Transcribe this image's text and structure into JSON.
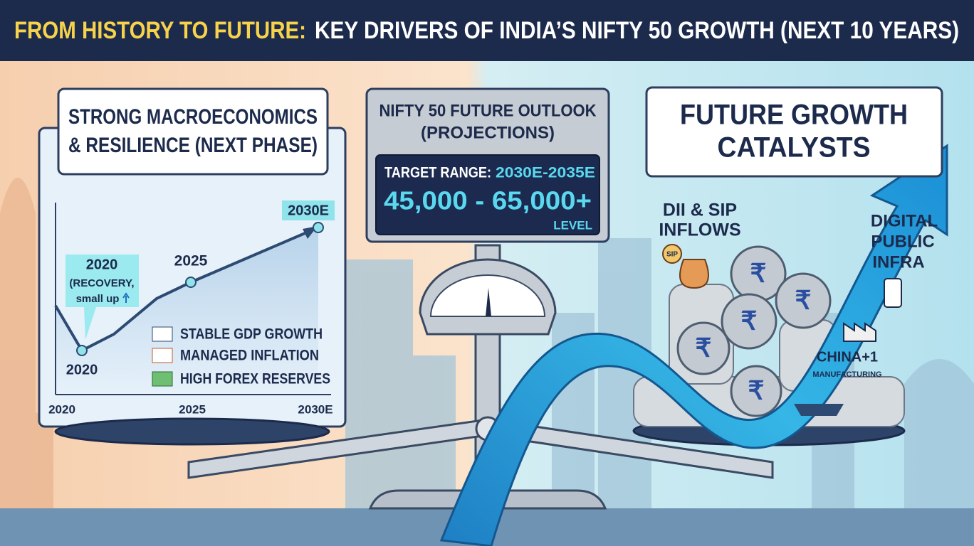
{
  "header": {
    "title_highlight": "FROM HISTORY TO FUTURE:",
    "title": "KEY DRIVERS OF INDIA’S NIFTY 50 GROWTH (NEXT 10 YEARS)"
  },
  "left_panel": {
    "title_lines": [
      "STRONG MACROECONOMICS",
      "& RESILIENCE (NEXT PHASE)"
    ],
    "chart": {
      "end_label": "2030E",
      "mid_label": "2025",
      "low_label": "2020",
      "callout_lines": [
        "2020",
        "(RECOVERY,",
        "small up"
      ],
      "x_labels": [
        "2020",
        "2025",
        "2030E"
      ]
    },
    "drivers": [
      "STABLE GDP GROWTH",
      "MANAGED INFLATION",
      "HIGH FOREX RESERVES"
    ]
  },
  "center_panel": {
    "title_lines": [
      "NIFTY 50 FUTURE OUTLOOK",
      "(PROJECTIONS)"
    ],
    "target_label": "TARGET RANGE:",
    "target_period": "2030E-2035E",
    "range": "45,000 - 65,000+",
    "unit": "LEVEL"
  },
  "right_panel": {
    "title_lines": [
      "FUTURE GROWTH",
      "CATALYSTS"
    ],
    "sip_badge": "SIP",
    "catalysts": [
      {
        "lines": [
          "DII & SIP",
          "INFLOWS"
        ]
      },
      {
        "lines": [
          "DIGITAL",
          "PUBLIC",
          "INFRA"
        ]
      },
      {
        "lines": [
          "CHINA+1",
          "MANUFACTURING"
        ]
      }
    ]
  }
}
